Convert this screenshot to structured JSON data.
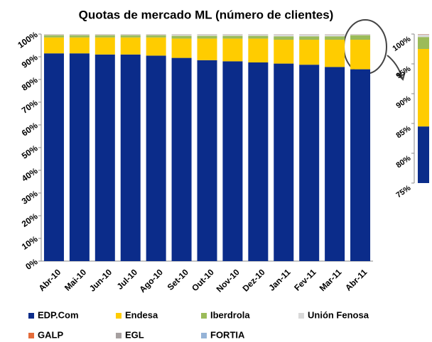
{
  "chart_data": {
    "type": "stacked_bar_100",
    "title": "Quotas de mercado ML (número de clientes)",
    "categories": [
      "Abr-10",
      "Mai-10",
      "Jun-10",
      "Jul-10",
      "Ago-10",
      "Set-10",
      "Out-10",
      "Nov-10",
      "Dez-10",
      "Jan-11",
      "Fev-11",
      "Mar-11",
      "Abr-11"
    ],
    "series": [
      {
        "name": "EDP.Com",
        "color": "#0b2c8a",
        "values": [
          91.5,
          91.5,
          91,
          91,
          90.5,
          89.5,
          88.5,
          88,
          87.5,
          87,
          86.5,
          85.5,
          84.5
        ]
      },
      {
        "name": "Endesa",
        "color": "#ffcc00",
        "values": [
          7,
          7,
          7.5,
          7.5,
          8,
          8.5,
          9.5,
          10,
          10.5,
          10.5,
          11,
          12,
          13
        ]
      },
      {
        "name": "Iberdrola",
        "color": "#9bbb59",
        "values": [
          1,
          1,
          1,
          1,
          1,
          1.2,
          1.2,
          1.2,
          1.2,
          1.5,
          1.5,
          1.5,
          2
        ]
      },
      {
        "name": "Unión Fenosa",
        "color": "#d9d9d9",
        "values": [
          0.4,
          0.4,
          0.4,
          0.4,
          0.4,
          0.7,
          0.7,
          0.7,
          0.7,
          0.9,
          0.9,
          0.9,
          0.4
        ]
      },
      {
        "name": "GALP",
        "color": "#e46c3a",
        "values": [
          0.05,
          0.05,
          0.05,
          0.05,
          0.05,
          0.05,
          0.05,
          0.05,
          0.05,
          0.05,
          0.05,
          0.05,
          0.05
        ]
      },
      {
        "name": "EGL",
        "color": "#a6a0a0",
        "values": [
          0.03,
          0.03,
          0.03,
          0.03,
          0.03,
          0.03,
          0.03,
          0.03,
          0.03,
          0.03,
          0.03,
          0.03,
          0.03
        ]
      },
      {
        "name": "FORTIA",
        "color": "#95b3d7",
        "values": [
          0.02,
          0.02,
          0.02,
          0.02,
          0.02,
          0.02,
          0.02,
          0.02,
          0.02,
          0.02,
          0.02,
          0.02,
          0.02
        ]
      }
    ],
    "ylim": [
      0,
      100
    ],
    "yticks": [
      {
        "value": 0,
        "label": "0%"
      },
      {
        "value": 10,
        "label": "10%"
      },
      {
        "value": 20,
        "label": "20%"
      },
      {
        "value": 30,
        "label": "30%"
      },
      {
        "value": 40,
        "label": "40%"
      },
      {
        "value": 50,
        "label": "50%"
      },
      {
        "value": 60,
        "label": "60%"
      },
      {
        "value": 70,
        "label": "70%"
      },
      {
        "value": 80,
        "label": "80%"
      },
      {
        "value": 90,
        "label": "90%"
      },
      {
        "value": 100,
        "label": "100%"
      }
    ],
    "inset": {
      "ylim": [
        75,
        100
      ],
      "yticks": [
        {
          "value": 75,
          "label": "75%"
        },
        {
          "value": 80,
          "label": "80%"
        },
        {
          "value": 85,
          "label": "85%"
        },
        {
          "value": 90,
          "label": "90%"
        },
        {
          "value": 95,
          "label": "95%"
        },
        {
          "value": 100,
          "label": "100%"
        }
      ]
    }
  }
}
